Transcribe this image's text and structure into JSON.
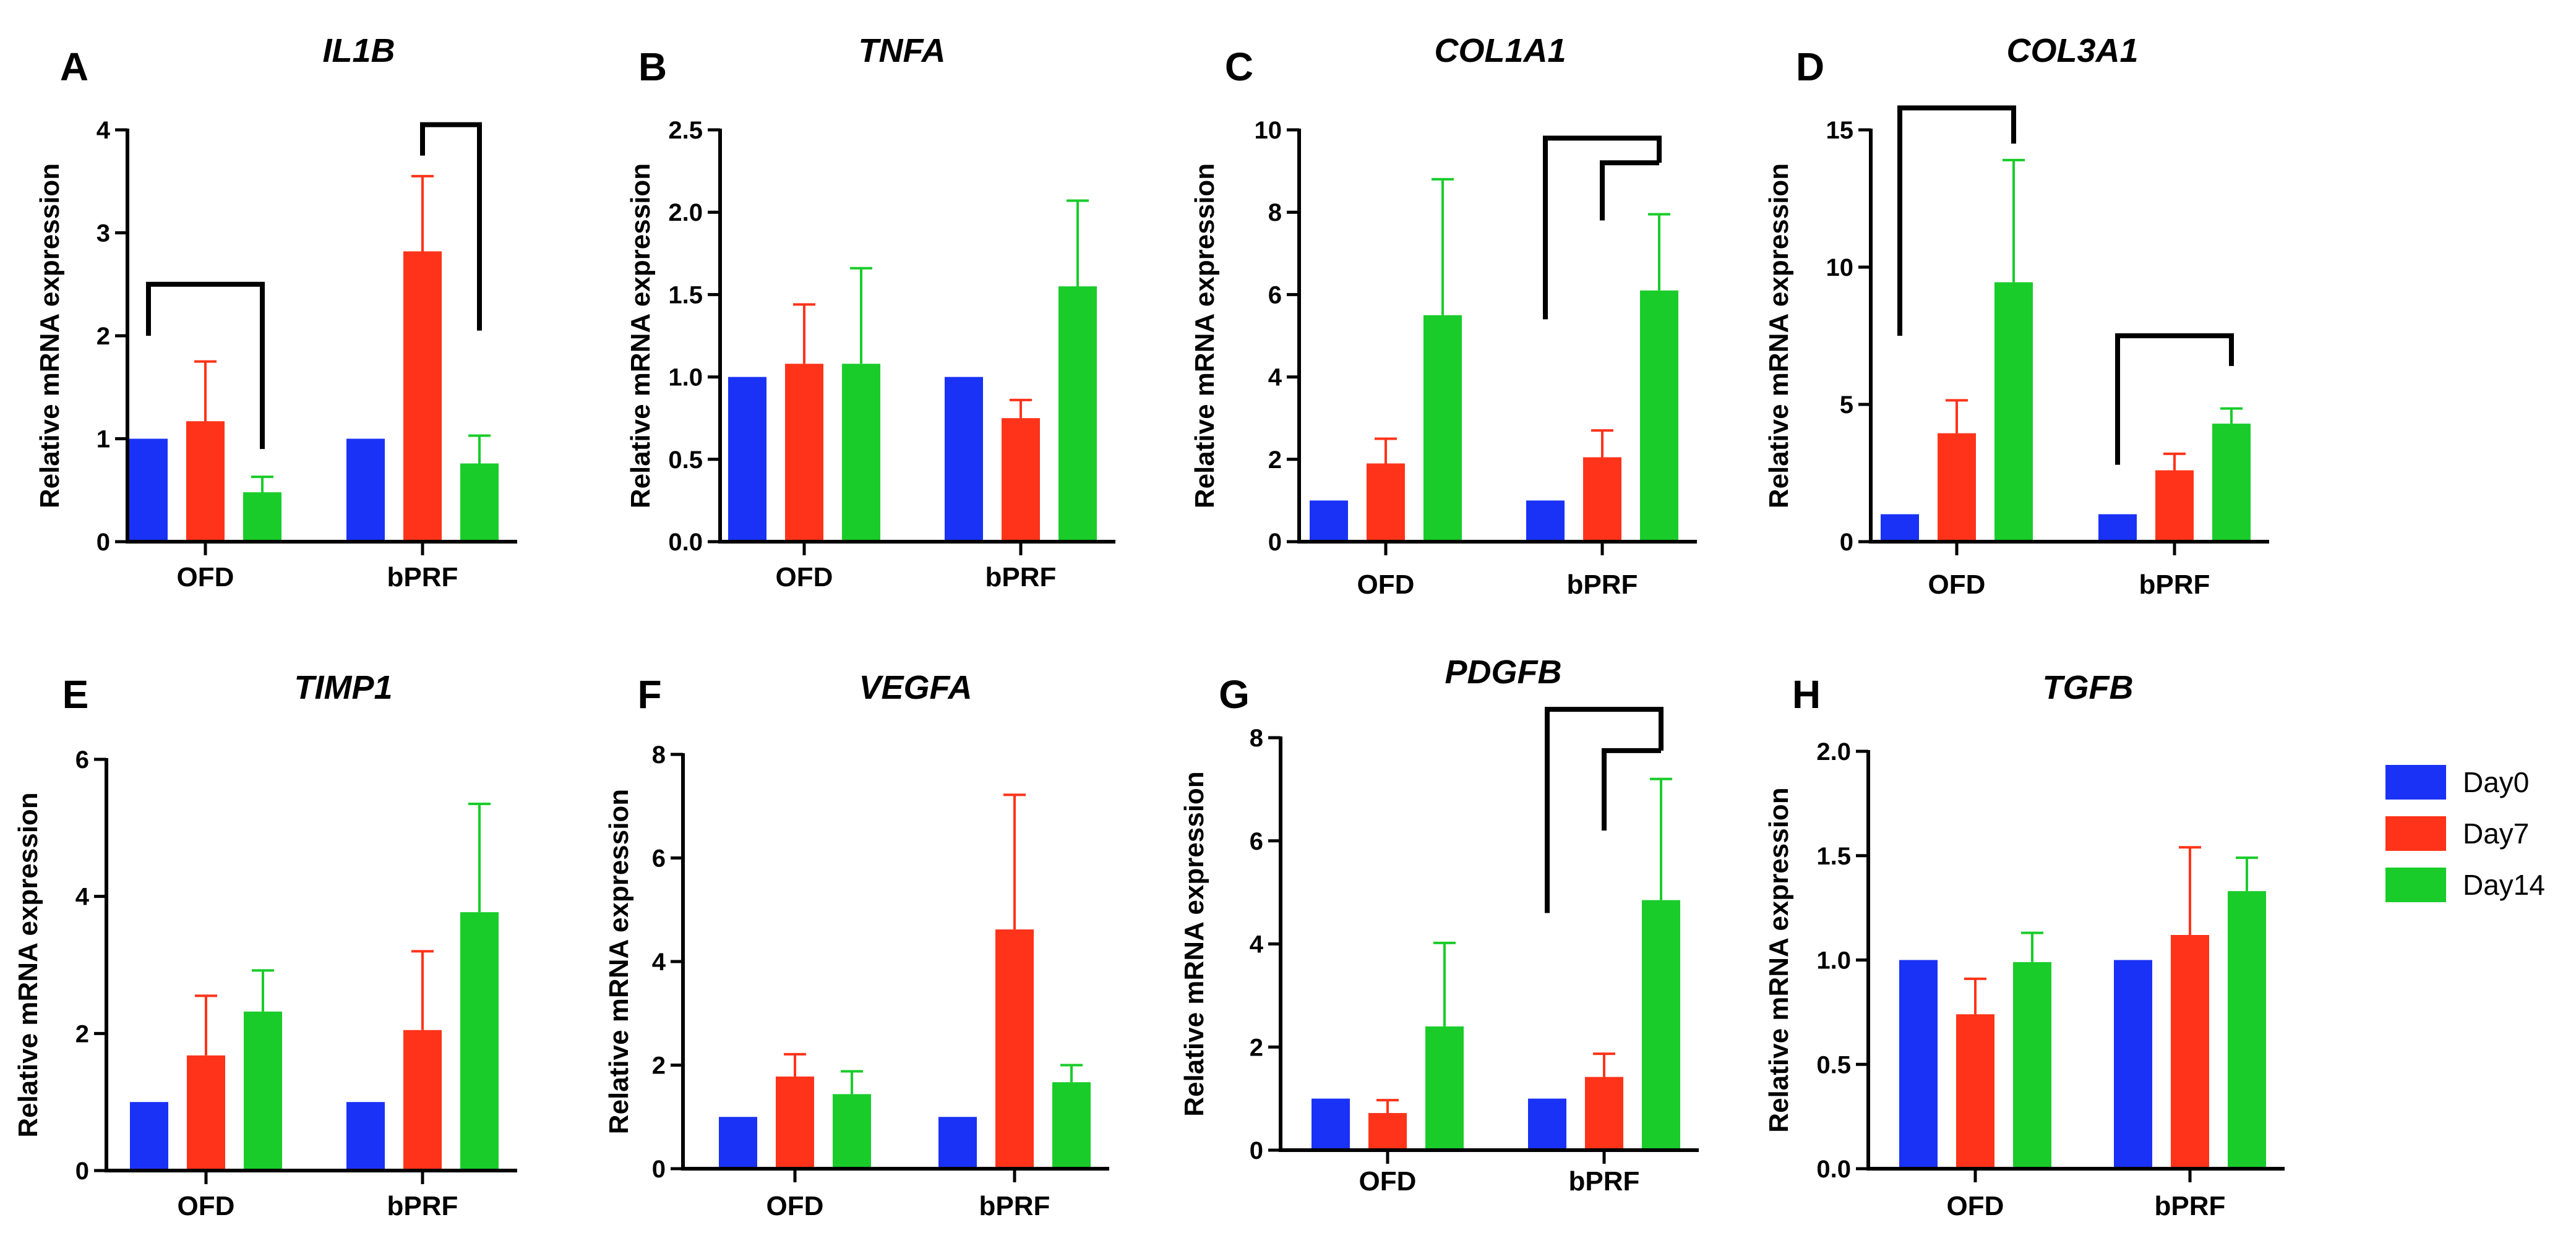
{
  "legend": [
    {
      "name": "Day0",
      "color": "#1a32f5"
    },
    {
      "name": "Day7",
      "color": "#ff3319"
    },
    {
      "name": "Day14",
      "color": "#19cc2a"
    }
  ],
  "chart_data": [
    {
      "letter": "A",
      "title": "IL1B",
      "type": "bar",
      "ylabel": "Relative mRNA expression",
      "ylim": [
        0,
        4
      ],
      "yticks": [
        "0",
        "1",
        "2",
        "3",
        "4"
      ],
      "categories": [
        "OFD",
        "bPRF"
      ],
      "series": [
        {
          "name": "Day0",
          "values": [
            1.0,
            1.0
          ],
          "errors": [
            0,
            0
          ]
        },
        {
          "name": "Day7",
          "values": [
            1.17,
            2.82
          ],
          "errors": [
            0.58,
            0.73
          ]
        },
        {
          "name": "Day14",
          "values": [
            0.48,
            0.76
          ],
          "errors": [
            0.15,
            0.27
          ]
        }
      ],
      "brackets": [
        {
          "from": [
            0,
            0
          ],
          "to": [
            0,
            2
          ],
          "level": 2.5,
          "left_end": 2.0,
          "right_end": 0.9
        },
        {
          "from": [
            1,
            1
          ],
          "to": [
            1,
            2
          ],
          "level": 4.05,
          "left_end": 3.75,
          "right_end": 2.05
        }
      ]
    },
    {
      "letter": "B",
      "title": "TNFA",
      "type": "bar",
      "ylabel": "Relative mRNA expression",
      "ylim": [
        0,
        2.5
      ],
      "yticks": [
        "0.0",
        "0.5",
        "1.0",
        "1.5",
        "2.0",
        "2.5"
      ],
      "categories": [
        "OFD",
        "bPRF"
      ],
      "series": [
        {
          "name": "Day0",
          "values": [
            1.0,
            1.0
          ],
          "errors": [
            0,
            0
          ]
        },
        {
          "name": "Day7",
          "values": [
            1.08,
            0.75
          ],
          "errors": [
            0.36,
            0.11
          ]
        },
        {
          "name": "Day14",
          "values": [
            1.08,
            1.55
          ],
          "errors": [
            0.58,
            0.52
          ]
        }
      ],
      "brackets": []
    },
    {
      "letter": "C",
      "title": "COL1A1",
      "type": "bar",
      "ylabel": "Relative mRNA expression",
      "ylim": [
        0,
        10
      ],
      "yticks": [
        "0",
        "2",
        "4",
        "6",
        "8",
        "10"
      ],
      "categories": [
        "OFD",
        "bPRF"
      ],
      "series": [
        {
          "name": "Day0",
          "values": [
            1.0,
            1.0
          ],
          "errors": [
            0,
            0
          ]
        },
        {
          "name": "Day7",
          "values": [
            1.9,
            2.05
          ],
          "errors": [
            0.6,
            0.65
          ]
        },
        {
          "name": "Day14",
          "values": [
            5.5,
            6.1
          ],
          "errors": [
            3.3,
            1.85
          ]
        }
      ],
      "brackets": [
        {
          "from": [
            1,
            0
          ],
          "to": [
            1,
            2
          ],
          "level": 9.8,
          "left_end": 5.4,
          "right_end": 9.2
        },
        {
          "from": [
            1,
            1
          ],
          "to": [
            1,
            2
          ],
          "level": 9.2,
          "left_end": 7.8,
          "right_end": 9.2
        }
      ]
    },
    {
      "letter": "D",
      "title": "COL3A1",
      "type": "bar",
      "ylabel": "Relative mRNA expression",
      "ylim": [
        0,
        15
      ],
      "yticks": [
        "0",
        "5",
        "10",
        "15"
      ],
      "categories": [
        "OFD",
        "bPRF"
      ],
      "series": [
        {
          "name": "Day0",
          "values": [
            1.0,
            1.0
          ],
          "errors": [
            0,
            0
          ]
        },
        {
          "name": "Day7",
          "values": [
            3.95,
            2.6
          ],
          "errors": [
            1.2,
            0.6
          ]
        },
        {
          "name": "Day14",
          "values": [
            9.45,
            4.3
          ],
          "errors": [
            4.45,
            0.55
          ]
        }
      ],
      "brackets": [
        {
          "from": [
            0,
            0
          ],
          "to": [
            0,
            2
          ],
          "level": 15.8,
          "left_end": 7.5,
          "right_end": 14.5
        },
        {
          "from": [
            1,
            0
          ],
          "to": [
            1,
            2
          ],
          "level": 7.5,
          "left_end": 2.8,
          "right_end": 6.4
        }
      ]
    },
    {
      "letter": "E",
      "title": "TIMP1",
      "type": "bar",
      "ylabel": "Relative mRNA expression",
      "ylim": [
        0,
        6
      ],
      "yticks": [
        "0",
        "2",
        "4",
        "6"
      ],
      "categories": [
        "OFD",
        "bPRF"
      ],
      "series": [
        {
          "name": "Day0",
          "values": [
            1.0,
            1.0
          ],
          "errors": [
            0,
            0
          ]
        },
        {
          "name": "Day7",
          "values": [
            1.68,
            2.05
          ],
          "errors": [
            0.87,
            1.15
          ]
        },
        {
          "name": "Day14",
          "values": [
            2.32,
            3.77
          ],
          "errors": [
            0.6,
            1.58
          ]
        }
      ],
      "brackets": []
    },
    {
      "letter": "F",
      "title": "VEGFA",
      "type": "bar",
      "ylabel": "Relative mRNA expression",
      "ylim": [
        0,
        8
      ],
      "yticks": [
        "0",
        "2",
        "4",
        "6",
        "8"
      ],
      "categories": [
        "OFD",
        "bPRF"
      ],
      "series": [
        {
          "name": "Day0",
          "values": [
            1.0,
            1.0
          ],
          "errors": [
            0,
            0
          ]
        },
        {
          "name": "Day7",
          "values": [
            1.78,
            4.62
          ],
          "errors": [
            0.43,
            2.6
          ]
        },
        {
          "name": "Day14",
          "values": [
            1.44,
            1.67
          ],
          "errors": [
            0.44,
            0.33
          ]
        }
      ],
      "brackets": []
    },
    {
      "letter": "G",
      "title": "PDGFB",
      "type": "bar",
      "ylabel": "Relative mRNA expression",
      "ylim": [
        0,
        8
      ],
      "yticks": [
        "0",
        "2",
        "4",
        "6",
        "8"
      ],
      "categories": [
        "OFD",
        "bPRF"
      ],
      "series": [
        {
          "name": "Day0",
          "values": [
            1.0,
            1.0
          ],
          "errors": [
            0,
            0
          ]
        },
        {
          "name": "Day7",
          "values": [
            0.72,
            1.42
          ],
          "errors": [
            0.25,
            0.45
          ]
        },
        {
          "name": "Day14",
          "values": [
            2.4,
            4.85
          ],
          "errors": [
            1.62,
            2.35
          ]
        }
      ],
      "brackets": [
        {
          "from": [
            1,
            0
          ],
          "to": [
            1,
            2
          ],
          "level": 8.55,
          "left_end": 4.6,
          "right_end": 7.75
        },
        {
          "from": [
            1,
            1
          ],
          "to": [
            1,
            2
          ],
          "level": 7.75,
          "left_end": 6.2,
          "right_end": 7.75
        }
      ]
    },
    {
      "letter": "H",
      "title": "TGFB",
      "type": "bar",
      "ylabel": "Relative mRNA expression",
      "ylim": [
        0,
        2.0
      ],
      "yticks": [
        "0.0",
        "0.5",
        "1.0",
        "1.5",
        "2.0"
      ],
      "categories": [
        "OFD",
        "bPRF"
      ],
      "series": [
        {
          "name": "Day0",
          "values": [
            1.0,
            1.0
          ],
          "errors": [
            0,
            0
          ]
        },
        {
          "name": "Day7",
          "values": [
            0.74,
            1.12
          ],
          "errors": [
            0.17,
            0.42
          ]
        },
        {
          "name": "Day14",
          "values": [
            0.99,
            1.33
          ],
          "errors": [
            0.14,
            0.16
          ]
        }
      ],
      "brackets": []
    }
  ]
}
